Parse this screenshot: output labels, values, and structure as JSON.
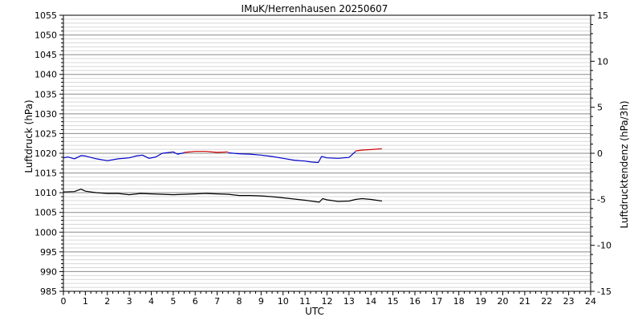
{
  "chart_data": {
    "type": "line",
    "title": "IMuK/Herrenhausen 20250607",
    "xlabel": "UTC",
    "ylabel_left": "Luftdruck (hPa)",
    "ylabel_right": "Luftdrucktendenz (hPa/3h)",
    "xlim": [
      0,
      24
    ],
    "ylim_left": [
      985,
      1055
    ],
    "ylim_right": [
      -15,
      15
    ],
    "x_ticks": [
      "0",
      "1",
      "2",
      "3",
      "4",
      "5",
      "6",
      "7",
      "8",
      "9",
      "10",
      "11",
      "12",
      "13",
      "14",
      "15",
      "16",
      "17",
      "18",
      "19",
      "20",
      "21",
      "22",
      "23",
      "24"
    ],
    "y_left_ticks": [
      "985",
      "990",
      "995",
      "1000",
      "1005",
      "1010",
      "1015",
      "1020",
      "1025",
      "1030",
      "1035",
      "1040",
      "1045",
      "1050",
      "1055"
    ],
    "y_right_ticks": [
      "-15",
      "-10",
      "-5",
      "0",
      "5",
      "10",
      "15"
    ],
    "grid": true,
    "colors": {
      "pressure": "#000000",
      "tendency_falling": "#0000cc",
      "tendency_rising": "#cc0000",
      "grid": "#a0a0a0"
    },
    "series": [
      {
        "axis": "left",
        "color": "#000000",
        "points": [
          [
            0.0,
            1010.2
          ],
          [
            0.5,
            1010.3
          ],
          [
            0.8,
            1010.9
          ],
          [
            1.0,
            1010.4
          ],
          [
            1.5,
            1010.0
          ],
          [
            2.0,
            1009.8
          ],
          [
            2.5,
            1009.8
          ],
          [
            3.0,
            1009.5
          ],
          [
            3.5,
            1009.8
          ],
          [
            4.0,
            1009.7
          ],
          [
            4.5,
            1009.6
          ],
          [
            5.0,
            1009.5
          ],
          [
            5.5,
            1009.6
          ],
          [
            6.0,
            1009.7
          ],
          [
            6.5,
            1009.8
          ],
          [
            7.0,
            1009.7
          ],
          [
            7.5,
            1009.6
          ],
          [
            8.0,
            1009.3
          ],
          [
            8.5,
            1009.3
          ],
          [
            9.0,
            1009.2
          ],
          [
            9.5,
            1009.0
          ],
          [
            10.0,
            1008.7
          ],
          [
            10.5,
            1008.4
          ],
          [
            11.0,
            1008.1
          ],
          [
            11.5,
            1007.7
          ],
          [
            11.65,
            1007.6
          ],
          [
            11.8,
            1008.5
          ],
          [
            12.0,
            1008.2
          ],
          [
            12.5,
            1007.8
          ],
          [
            13.0,
            1007.9
          ],
          [
            13.3,
            1008.3
          ],
          [
            13.6,
            1008.5
          ],
          [
            14.0,
            1008.3
          ],
          [
            14.5,
            1007.9
          ]
        ]
      },
      {
        "axis": "right",
        "color": "#0000cc",
        "points": [
          [
            0.0,
            -0.5
          ],
          [
            0.2,
            -0.4
          ],
          [
            0.5,
            -0.6
          ],
          [
            0.8,
            -0.25
          ],
          [
            1.0,
            -0.3
          ],
          [
            1.5,
            -0.6
          ],
          [
            2.0,
            -0.8
          ],
          [
            2.5,
            -0.6
          ],
          [
            3.0,
            -0.5
          ],
          [
            3.3,
            -0.3
          ],
          [
            3.6,
            -0.2
          ],
          [
            3.9,
            -0.55
          ],
          [
            4.2,
            -0.4
          ],
          [
            4.5,
            0.0
          ],
          [
            5.0,
            0.15
          ],
          [
            5.2,
            -0.1
          ],
          [
            5.5,
            0.05
          ]
        ]
      },
      {
        "axis": "right",
        "color": "#cc0000",
        "points": [
          [
            5.5,
            0.1
          ],
          [
            6.0,
            0.2
          ],
          [
            6.5,
            0.2
          ],
          [
            7.0,
            0.1
          ],
          [
            7.5,
            0.15
          ]
        ]
      },
      {
        "axis": "right",
        "color": "#0000cc",
        "points": [
          [
            7.5,
            0.05
          ],
          [
            8.0,
            -0.05
          ],
          [
            8.5,
            -0.1
          ],
          [
            9.0,
            -0.2
          ],
          [
            9.5,
            -0.35
          ],
          [
            10.0,
            -0.55
          ],
          [
            10.5,
            -0.75
          ],
          [
            11.0,
            -0.85
          ],
          [
            11.3,
            -0.95
          ],
          [
            11.6,
            -1.0
          ],
          [
            11.75,
            -0.35
          ],
          [
            12.0,
            -0.5
          ],
          [
            12.5,
            -0.55
          ],
          [
            13.0,
            -0.45
          ],
          [
            13.3,
            0.2
          ]
        ]
      },
      {
        "axis": "right",
        "color": "#cc0000",
        "points": [
          [
            13.3,
            0.25
          ],
          [
            13.6,
            0.35
          ],
          [
            14.0,
            0.4
          ],
          [
            14.5,
            0.5
          ]
        ]
      }
    ]
  }
}
